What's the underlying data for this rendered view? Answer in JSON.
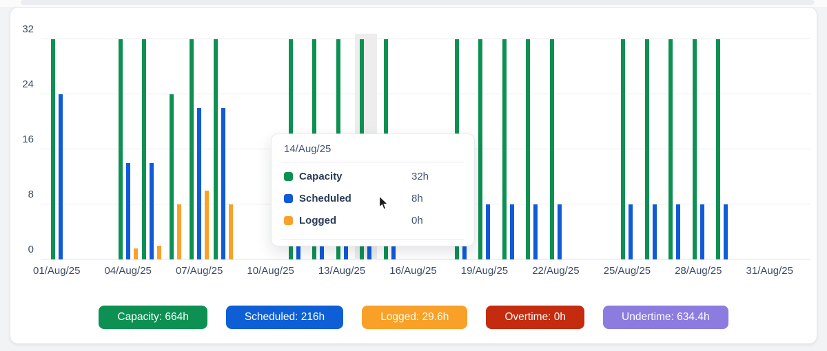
{
  "colors": {
    "capacity": "#0d9153",
    "scheduled": "#0f5bd8",
    "logged": "#f9a12a",
    "overtime": "#c52b0e",
    "undertime": "#8c7ce0",
    "highlight_band": "#ededee",
    "gridline": "#e9ebee",
    "tick_text": "#3c4b66"
  },
  "chart_data": {
    "type": "bar",
    "title": "",
    "xlabel": "",
    "ylabel": "",
    "unit": "h",
    "ylim": [
      0,
      32
    ],
    "yticks": [
      0,
      8,
      16,
      24,
      32
    ],
    "grid": true,
    "legend_position": "tooltip-only",
    "categories": [
      "01/Aug/25",
      "02/Aug/25",
      "03/Aug/25",
      "04/Aug/25",
      "05/Aug/25",
      "06/Aug/25",
      "07/Aug/25",
      "08/Aug/25",
      "09/Aug/25",
      "10/Aug/25",
      "11/Aug/25",
      "12/Aug/25",
      "13/Aug/25",
      "14/Aug/25",
      "15/Aug/25",
      "16/Aug/25",
      "17/Aug/25",
      "18/Aug/25",
      "19/Aug/25",
      "20/Aug/25",
      "21/Aug/25",
      "22/Aug/25",
      "23/Aug/25",
      "24/Aug/25",
      "25/Aug/25",
      "26/Aug/25",
      "27/Aug/25",
      "28/Aug/25",
      "29/Aug/25",
      "30/Aug/25",
      "31/Aug/25"
    ],
    "x_tick_labels": [
      "01/Aug/25",
      "04/Aug/25",
      "07/Aug/25",
      "10/Aug/25",
      "13/Aug/25",
      "16/Aug/25",
      "19/Aug/25",
      "22/Aug/25",
      "25/Aug/25",
      "28/Aug/25",
      "31/Aug/25"
    ],
    "x_tick_every": 3,
    "hovered_index": 13,
    "series": [
      {
        "name": "Capacity",
        "color": "#0d9153",
        "values": [
          32,
          0,
          0,
          32,
          32,
          24,
          32,
          32,
          0,
          0,
          32,
          32,
          32,
          32,
          32,
          0,
          0,
          32,
          32,
          32,
          32,
          32,
          0,
          0,
          32,
          32,
          32,
          32,
          32,
          0,
          0
        ]
      },
      {
        "name": "Scheduled",
        "color": "#0f5bd8",
        "values": [
          24,
          0,
          0,
          14,
          14,
          0,
          22,
          22,
          0,
          0,
          8,
          8,
          8,
          8,
          8,
          0,
          0,
          8,
          8,
          8,
          8,
          8,
          0,
          0,
          8,
          8,
          8,
          8,
          8,
          0,
          0
        ]
      },
      {
        "name": "Logged",
        "color": "#f9a12a",
        "values": [
          0,
          0,
          0,
          1.6,
          2,
          8,
          10,
          8,
          0,
          0,
          0,
          0,
          0,
          0,
          0,
          0,
          0,
          0,
          0,
          0,
          0,
          0,
          0,
          0,
          0,
          0,
          0,
          0,
          0,
          0,
          0
        ]
      }
    ]
  },
  "tooltip": {
    "date": "14/Aug/25",
    "rows": [
      {
        "label": "Capacity",
        "value": "32h",
        "color": "#0d9153"
      },
      {
        "label": "Scheduled",
        "value": "8h",
        "color": "#0f5bd8"
      },
      {
        "label": "Logged",
        "value": "0h",
        "color": "#f9a12a"
      }
    ]
  },
  "badges": [
    {
      "id": "capacity",
      "label": "Capacity: 664h",
      "color": "#0d9153"
    },
    {
      "id": "scheduled",
      "label": "Scheduled: 216h",
      "color": "#0e5fd6"
    },
    {
      "id": "logged",
      "label": "Logged: 29.6h",
      "color": "#f9a028"
    },
    {
      "id": "overtime",
      "label": "Overtime: 0h",
      "color": "#c52b0e"
    },
    {
      "id": "undertime",
      "label": "Undertime: 634.4h",
      "color": "#8c7ce0"
    }
  ]
}
